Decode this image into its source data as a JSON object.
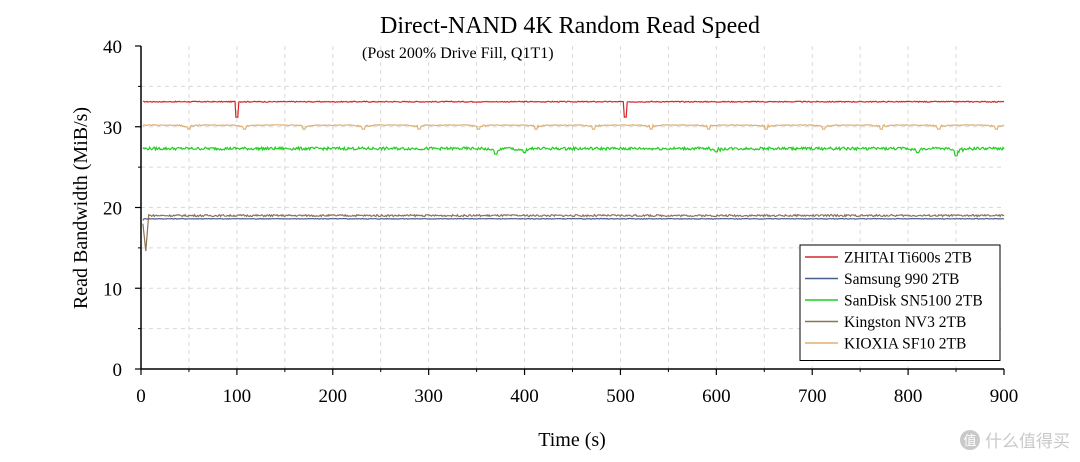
{
  "chart_data": {
    "type": "line",
    "title": "Direct-NAND 4K Random Read Speed",
    "subtitle": "(Post 200% Drive Fill, Q1T1)",
    "xlabel": "Time (s)",
    "ylabel": "Read Bandwidth (MiB/s)",
    "xlim": [
      0,
      900
    ],
    "ylim": [
      0,
      40
    ],
    "xticks": [
      "0",
      "100",
      "200",
      "300",
      "400",
      "500",
      "600",
      "700",
      "800",
      "900"
    ],
    "yticks": [
      "0",
      "10",
      "20",
      "30",
      "40"
    ],
    "grid": true,
    "legend_position": "right",
    "series": [
      {
        "name": "ZHITAI Ti600s 2TB",
        "color": "#d62728",
        "base": 33.1,
        "dips": [
          [
            100,
            31.2
          ],
          [
            505,
            31.2
          ]
        ],
        "noise": 0.06
      },
      {
        "name": "Samsung 990 2TB",
        "color": "#4a5d8f",
        "base": 18.6,
        "start": [
          [
            2,
            18.4
          ]
        ],
        "dips": [],
        "noise": 0.04
      },
      {
        "name": "SanDisk SN5100 2TB",
        "color": "#22cc22",
        "base": 27.3,
        "dips": [
          [
            370,
            26.6
          ],
          [
            400,
            26.8
          ],
          [
            600,
            26.9
          ],
          [
            810,
            26.8
          ],
          [
            850,
            26.4
          ]
        ],
        "noise": 0.18
      },
      {
        "name": "Kingston NV3 2TB",
        "color": "#8b7355",
        "base": 19.0,
        "start": [
          [
            2,
            18.0
          ],
          [
            5,
            14.6
          ],
          [
            8,
            19.1
          ]
        ],
        "dips": [],
        "noise": 0.12
      },
      {
        "name": "KIOXIA SF10 2TB",
        "color": "#e0b070",
        "base": 30.2,
        "start": [
          [
            2,
            30.1
          ]
        ],
        "dips": [
          [
            50,
            29.7
          ],
          [
            108,
            29.7
          ],
          [
            170,
            29.7
          ],
          [
            232,
            29.7
          ],
          [
            290,
            29.7
          ],
          [
            352,
            29.7
          ],
          [
            412,
            29.7
          ],
          [
            472,
            29.7
          ],
          [
            532,
            29.7
          ],
          [
            592,
            29.7
          ],
          [
            652,
            29.7
          ],
          [
            712,
            29.7
          ],
          [
            772,
            29.7
          ],
          [
            832,
            29.7
          ],
          [
            892,
            29.7
          ]
        ],
        "noise": 0.05
      }
    ]
  },
  "watermark": {
    "icon": "值",
    "text": "什么值得买"
  }
}
